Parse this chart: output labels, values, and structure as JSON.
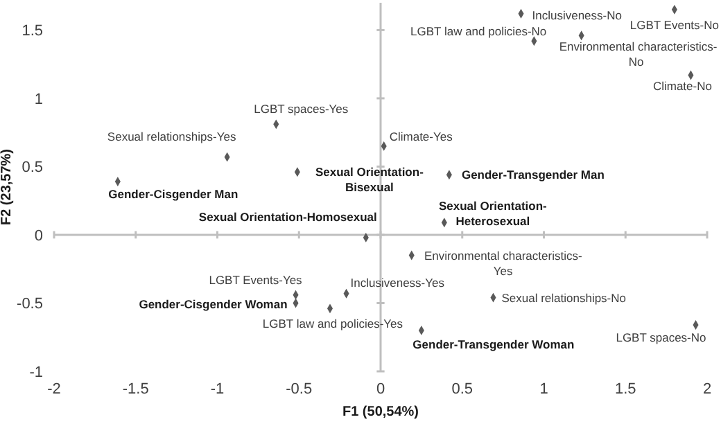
{
  "chart_data": {
    "type": "scatter",
    "xlabel": "F1 (50,54%)",
    "ylabel": "F2 (23,57%)",
    "xlim": [
      -2,
      2
    ],
    "ylim": [
      -1,
      1.7
    ],
    "xticks": [
      -2,
      -1.5,
      -1,
      -0.5,
      0,
      0.5,
      1,
      1.5,
      2
    ],
    "yticks": [
      -1,
      -0.5,
      0,
      0.5,
      1,
      1.5
    ],
    "marker": "diamond",
    "legend": false,
    "series": [
      {
        "name": "Inclusiveness-No",
        "color": "#595959",
        "x": [
          0.86
        ],
        "values": [
          1.62
        ]
      },
      {
        "name": "LGBT Events-No",
        "color": "#595959",
        "x": [
          1.8
        ],
        "values": [
          1.65
        ]
      },
      {
        "name": "LGBT law and policies-No",
        "color": "#595959",
        "x": [
          0.94
        ],
        "values": [
          1.42
        ]
      },
      {
        "name": "Environmental characteristics-No",
        "color": "#595959",
        "x": [
          1.23
        ],
        "values": [
          1.46
        ]
      },
      {
        "name": "Climate-No",
        "color": "#595959",
        "x": [
          1.9
        ],
        "values": [
          1.17
        ]
      },
      {
        "name": "LGBT spaces-Yes",
        "color": "#595959",
        "x": [
          -0.64
        ],
        "values": [
          0.81
        ]
      },
      {
        "name": "Sexual relationships-Yes",
        "color": "#595959",
        "x": [
          -0.94
        ],
        "values": [
          0.57
        ]
      },
      {
        "name": "Gender-Cisgender Man",
        "color": "#595959",
        "x": [
          -1.61
        ],
        "values": [
          0.39
        ]
      },
      {
        "name": "Sexual Orientation-Bisexual",
        "color": "#595959",
        "x": [
          -0.51
        ],
        "values": [
          0.46
        ]
      },
      {
        "name": "Climate-Yes",
        "color": "#595959",
        "x": [
          0.02
        ],
        "values": [
          0.65
        ]
      },
      {
        "name": "Gender-Transgender Man",
        "color": "#595959",
        "x": [
          0.42
        ],
        "values": [
          0.44
        ]
      },
      {
        "name": "Sexual Orientation-Heterosexual",
        "color": "#595959",
        "x": [
          0.39
        ],
        "values": [
          0.09
        ]
      },
      {
        "name": "Sexual Orientation-Homosexual",
        "color": "#595959",
        "x": [
          -0.09
        ],
        "values": [
          -0.02
        ]
      },
      {
        "name": "Environmental characteristics-Yes",
        "color": "#595959",
        "x": [
          0.19
        ],
        "values": [
          -0.15
        ]
      },
      {
        "name": "Inclusiveness-Yes",
        "color": "#595959",
        "x": [
          -0.21
        ],
        "values": [
          -0.43
        ]
      },
      {
        "name": "LGBT Events-Yes",
        "color": "#595959",
        "x": [
          -0.52
        ],
        "values": [
          -0.44
        ]
      },
      {
        "name": "Gender-Cisgender Woman",
        "color": "#595959",
        "x": [
          -0.52
        ],
        "values": [
          -0.5
        ]
      },
      {
        "name": "LGBT law and policies-Yes",
        "color": "#595959",
        "x": [
          -0.31
        ],
        "values": [
          -0.54
        ]
      },
      {
        "name": "Sexual relationships-No",
        "color": "#595959",
        "x": [
          0.69
        ],
        "values": [
          -0.46
        ]
      },
      {
        "name": "Gender-Transgender Woman",
        "color": "#595959",
        "x": [
          0.25
        ],
        "values": [
          -0.7
        ]
      },
      {
        "name": "LGBT spaces-No",
        "color": "#595959",
        "x": [
          1.93
        ],
        "values": [
          -0.66
        ]
      }
    ]
  }
}
